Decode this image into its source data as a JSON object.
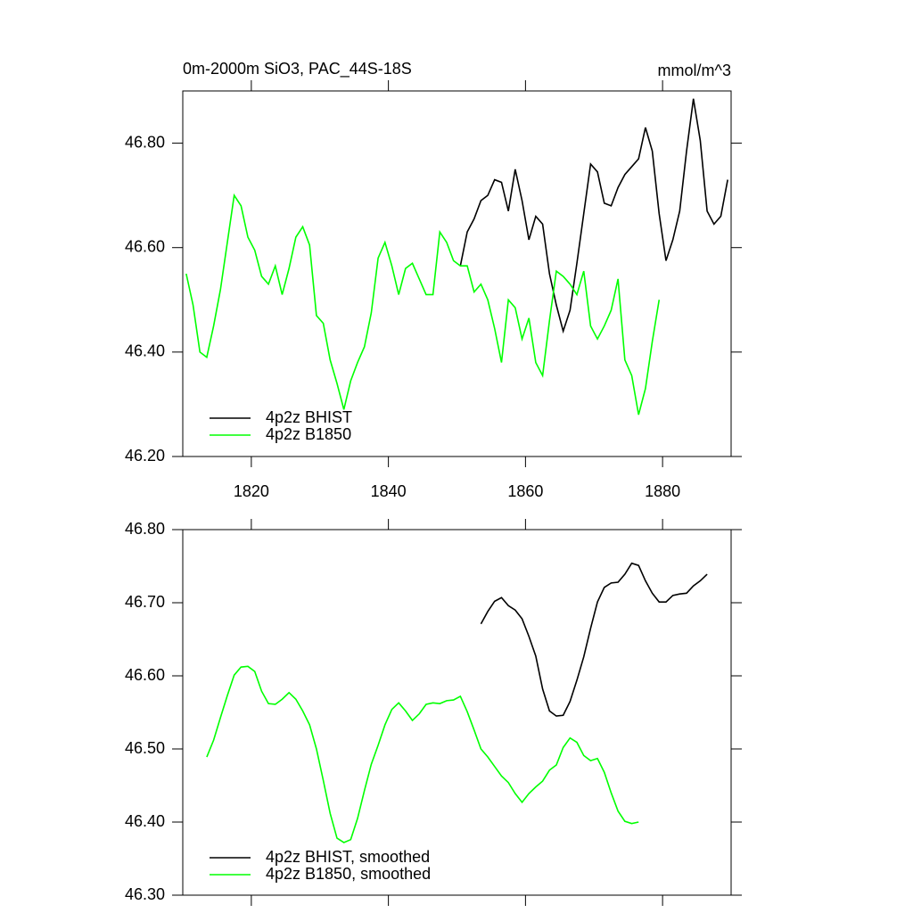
{
  "chart_data": [
    {
      "type": "line",
      "title": "0m-2000m SiO3, PAC_44S-18S",
      "subtitle": "mmol/m^3",
      "xlim": [
        1810,
        1890
      ],
      "xticks": [
        1820,
        1840,
        1860,
        1880
      ],
      "ylim": [
        46.2,
        46.9
      ],
      "yticks": [
        {
          "value": 46.2,
          "label": "46.20"
        },
        {
          "value": 46.4,
          "label": "46.40"
        },
        {
          "value": 46.6,
          "label": "46.60"
        },
        {
          "value": 46.8,
          "label": "46.80"
        }
      ],
      "series": [
        {
          "name": "4p2z BHIST",
          "color": "#000000",
          "x": [
            1850.5,
            1851.5,
            1852.5,
            1853.5,
            1854.5,
            1855.5,
            1856.5,
            1857.5,
            1858.5,
            1859.5,
            1860.5,
            1861.5,
            1862.5,
            1863.5,
            1864.5,
            1865.5,
            1866.5,
            1867.5,
            1868.5,
            1869.5,
            1870.5,
            1871.5,
            1872.5,
            1873.5,
            1874.5,
            1875.5,
            1876.5,
            1877.5,
            1878.5,
            1879.5,
            1880.5,
            1881.5,
            1882.5,
            1883.5,
            1884.5,
            1885.5,
            1886.5,
            1887.5,
            1888.5,
            1889.5
          ],
          "values": [
            46.565,
            46.63,
            46.655,
            46.69,
            46.7,
            46.73,
            46.725,
            46.67,
            46.75,
            46.69,
            46.615,
            46.66,
            46.645,
            46.55,
            46.49,
            46.44,
            46.48,
            46.57,
            46.665,
            46.76,
            46.745,
            46.685,
            46.68,
            46.715,
            46.74,
            46.755,
            46.77,
            46.83,
            46.785,
            46.665,
            46.575,
            46.615,
            46.67,
            46.785,
            46.885,
            46.805,
            46.67,
            46.645,
            46.66,
            46.73
          ]
        },
        {
          "name": "4p2z B1850",
          "color": "#00ff00",
          "x": [
            1810.5,
            1811.5,
            1812.5,
            1813.5,
            1814.5,
            1815.5,
            1816.5,
            1817.5,
            1818.5,
            1819.5,
            1820.5,
            1821.5,
            1822.5,
            1823.5,
            1824.5,
            1825.5,
            1826.5,
            1827.5,
            1828.5,
            1829.5,
            1830.5,
            1831.5,
            1832.5,
            1833.5,
            1834.5,
            1835.5,
            1836.5,
            1837.5,
            1838.5,
            1839.5,
            1840.5,
            1841.5,
            1842.5,
            1843.5,
            1844.5,
            1845.5,
            1846.5,
            1847.5,
            1848.5,
            1849.5,
            1850.5,
            1851.5,
            1852.5,
            1853.5,
            1854.5,
            1855.5,
            1856.5,
            1857.5,
            1858.5,
            1859.5,
            1860.5,
            1861.5,
            1862.5,
            1863.5,
            1864.5,
            1865.5,
            1866.5,
            1867.5,
            1868.5,
            1869.5,
            1870.5,
            1871.5,
            1872.5,
            1873.5,
            1874.5,
            1875.5,
            1876.5,
            1877.5,
            1878.5,
            1879.5
          ],
          "values": [
            46.55,
            46.49,
            46.4,
            46.39,
            46.45,
            46.52,
            46.61,
            46.7,
            46.68,
            46.62,
            46.595,
            46.545,
            46.53,
            46.565,
            46.51,
            46.56,
            46.62,
            46.64,
            46.605,
            46.47,
            46.455,
            46.385,
            46.34,
            46.29,
            46.345,
            46.38,
            46.41,
            46.475,
            46.58,
            46.61,
            46.565,
            46.51,
            46.56,
            46.57,
            46.54,
            46.51,
            46.51,
            46.63,
            46.61,
            46.575,
            46.565,
            46.565,
            46.515,
            46.53,
            46.5,
            46.445,
            46.38,
            46.5,
            46.485,
            46.425,
            46.465,
            46.38,
            46.355,
            46.46,
            46.555,
            46.545,
            46.53,
            46.51,
            46.555,
            46.45,
            46.425,
            46.45,
            46.48,
            46.54,
            46.385,
            46.355,
            46.28,
            46.33,
            46.42,
            46.5
          ]
        }
      ]
    },
    {
      "type": "line",
      "xlim": [
        1810,
        1890
      ],
      "xticks": [
        1820,
        1840,
        1860,
        1880
      ],
      "ylim": [
        46.3,
        46.8
      ],
      "yticks": [
        {
          "value": 46.3,
          "label": "46.30"
        },
        {
          "value": 46.4,
          "label": "46.40"
        },
        {
          "value": 46.5,
          "label": "46.50"
        },
        {
          "value": 46.6,
          "label": "46.60"
        },
        {
          "value": 46.7,
          "label": "46.70"
        },
        {
          "value": 46.8,
          "label": "46.80"
        }
      ],
      "series": [
        {
          "name": "4p2z BHIST, smoothed",
          "color": "#000000",
          "x": [
            1853.5,
            1854.5,
            1855.5,
            1856.5,
            1857.5,
            1858.5,
            1859.5,
            1860.5,
            1861.5,
            1862.5,
            1863.5,
            1864.5,
            1865.5,
            1866.5,
            1867.5,
            1868.5,
            1869.5,
            1870.5,
            1871.5,
            1872.5,
            1873.5,
            1874.5,
            1875.5,
            1876.5,
            1877.5,
            1878.5,
            1879.5,
            1880.5,
            1881.5,
            1882.5,
            1883.5,
            1884.5,
            1885.5,
            1886.5
          ],
          "values": [
            46.671,
            46.688,
            46.702,
            46.707,
            46.696,
            46.69,
            46.678,
            46.654,
            46.627,
            46.582,
            46.552,
            46.545,
            46.546,
            46.565,
            46.594,
            46.626,
            46.665,
            46.701,
            46.721,
            46.727,
            46.728,
            46.739,
            46.754,
            46.751,
            46.73,
            46.713,
            46.701,
            46.701,
            46.71,
            46.712,
            46.713,
            46.723,
            46.73,
            46.739
          ]
        },
        {
          "name": "4p2z B1850, smoothed",
          "color": "#00ff00",
          "x": [
            1813.5,
            1814.5,
            1815.5,
            1816.5,
            1817.5,
            1818.5,
            1819.5,
            1820.5,
            1821.5,
            1822.5,
            1823.5,
            1824.5,
            1825.5,
            1826.5,
            1827.5,
            1828.5,
            1829.5,
            1830.5,
            1831.5,
            1832.5,
            1833.5,
            1834.5,
            1835.5,
            1836.5,
            1837.5,
            1838.5,
            1839.5,
            1840.5,
            1841.5,
            1842.5,
            1843.5,
            1844.5,
            1845.5,
            1846.5,
            1847.5,
            1848.5,
            1849.5,
            1850.5,
            1851.5,
            1852.5,
            1853.5,
            1854.5,
            1855.5,
            1856.5,
            1857.5,
            1858.5,
            1859.5,
            1860.5,
            1861.5,
            1862.5,
            1863.5,
            1864.5,
            1865.5,
            1866.5,
            1867.5,
            1868.5,
            1869.5,
            1870.5,
            1871.5,
            1872.5,
            1873.5,
            1874.5,
            1875.5,
            1876.5
          ],
          "values": [
            46.489,
            46.512,
            46.543,
            46.573,
            46.601,
            46.612,
            46.613,
            46.606,
            46.579,
            46.562,
            46.561,
            46.568,
            46.577,
            46.568,
            46.552,
            46.533,
            46.5,
            46.457,
            46.412,
            46.378,
            46.372,
            46.376,
            46.405,
            46.443,
            46.479,
            46.505,
            46.533,
            46.554,
            46.563,
            46.552,
            46.539,
            46.548,
            46.561,
            46.563,
            46.562,
            46.566,
            46.567,
            46.572,
            46.551,
            46.526,
            46.5,
            46.489,
            46.476,
            46.463,
            46.454,
            46.439,
            46.427,
            46.439,
            46.448,
            46.456,
            46.471,
            46.478,
            46.502,
            46.515,
            46.509,
            46.491,
            46.484,
            46.487,
            46.468,
            46.44,
            46.415,
            46.401,
            46.398,
            46.4
          ]
        }
      ]
    }
  ]
}
